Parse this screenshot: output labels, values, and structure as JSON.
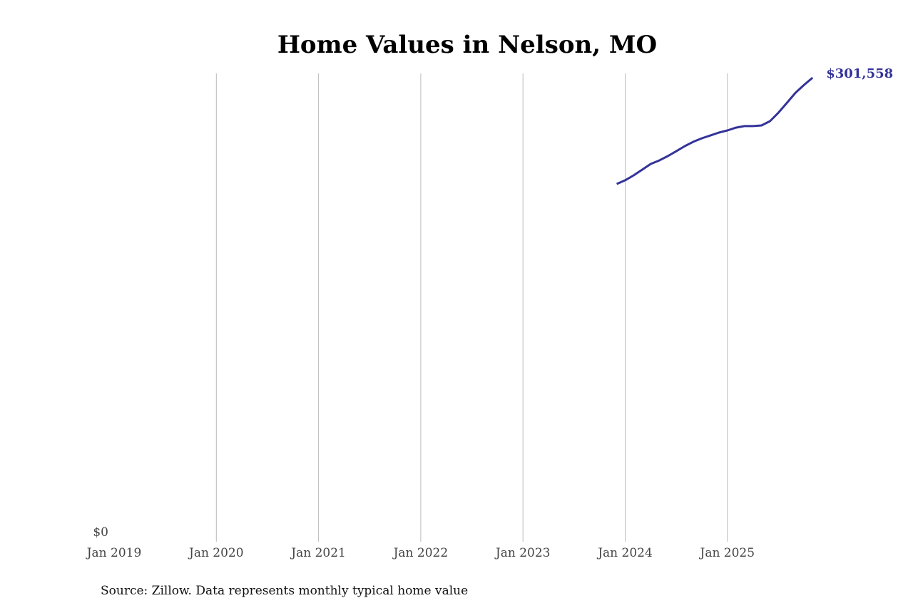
{
  "chart_data": {
    "type": "line",
    "title": "Home Values in Nelson, MO",
    "xlabel": "",
    "ylabel": "",
    "x_ticks": [
      "Jan 2019",
      "Jan 2020",
      "Jan 2021",
      "Jan 2022",
      "Jan 2023",
      "Jan 2024",
      "Jan 2025"
    ],
    "y_ticks": [
      "$0"
    ],
    "xlim": [
      "2019-01",
      "2025-11"
    ],
    "ylim": [
      0,
      301558
    ],
    "grid": "vertical",
    "line_color": "#33339a",
    "end_label": "$301,558",
    "series": [
      {
        "x": [
          "2023-12",
          "2024-01",
          "2024-02",
          "2024-03",
          "2024-04",
          "2024-05",
          "2024-06",
          "2024-07",
          "2024-08",
          "2024-09",
          "2024-10",
          "2024-11",
          "2024-12",
          "2025-01",
          "2025-02",
          "2025-03",
          "2025-04",
          "2025-05",
          "2025-06",
          "2025-07",
          "2025-08",
          "2025-09",
          "2025-10",
          "2025-11"
        ],
        "values": [
          232500,
          234900,
          238100,
          241800,
          245500,
          247800,
          250600,
          253800,
          257100,
          259900,
          262200,
          264000,
          265900,
          267300,
          269100,
          270100,
          270100,
          270500,
          273300,
          278900,
          285300,
          291800,
          296900,
          301558
        ]
      }
    ]
  },
  "source": "Source: Zillow. Data represents monthly typical home value"
}
